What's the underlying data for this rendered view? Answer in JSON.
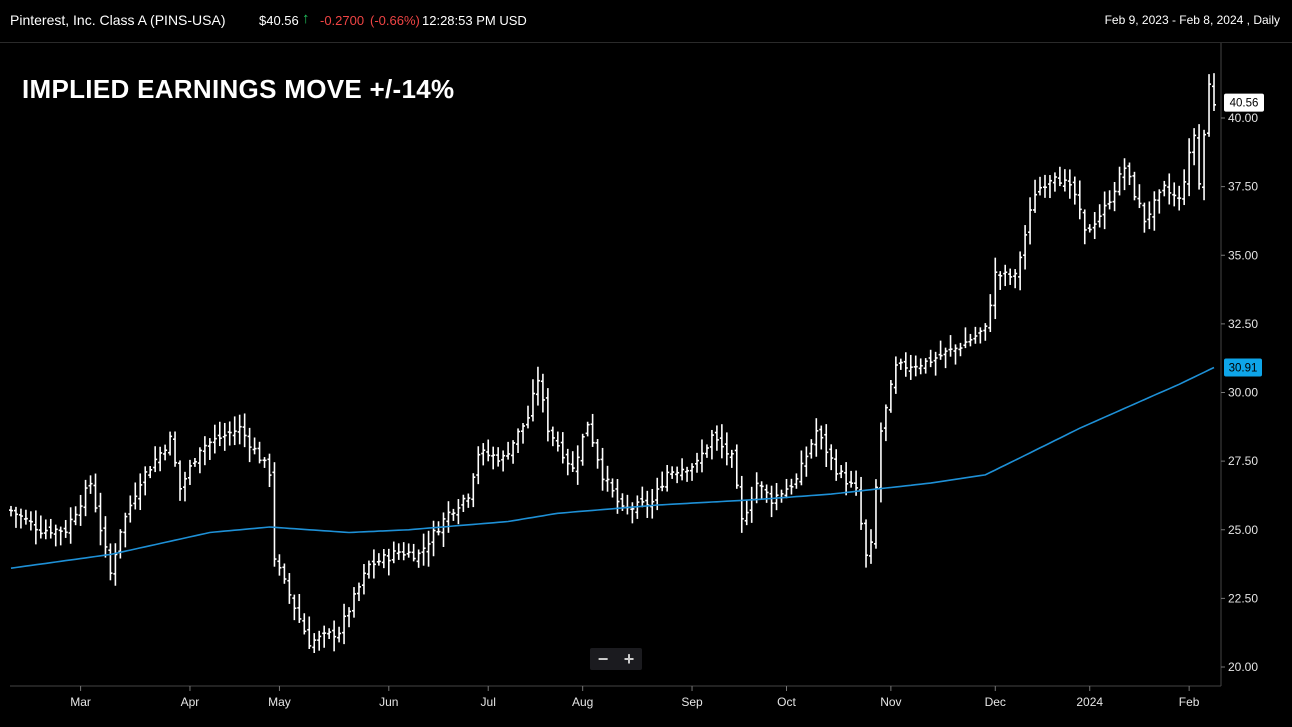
{
  "header": {
    "symbol": "Pinterest, Inc. Class A (PINS-USA)",
    "price": "$40.56",
    "arrow_icon": "arrow-up-icon",
    "change": "-0.2700",
    "change_pct": "(-0.66%)",
    "time": "12:28:53 PM USD",
    "range": "Feb 9, 2023 - Feb 8, 2024 , Daily",
    "up_color": "#22c55e",
    "down_color": "#ef4444"
  },
  "annotation": "IMPLIED EARNINGS MOVE +/-14%",
  "zoom": {
    "minus": "−",
    "plus": "+"
  },
  "colors": {
    "bars": "#ffffff",
    "ma": "#1e90d6",
    "ma_tag": "#0ea5e9",
    "background": "#000000"
  },
  "chart_data": {
    "type": "ohlc",
    "title": "",
    "ylim": [
      19.5,
      42.0
    ],
    "y_ticks": [
      20.0,
      22.5,
      25.0,
      27.5,
      30.0,
      32.5,
      35.0,
      37.5,
      40.0
    ],
    "y_tick_labels": [
      "20.00",
      "22.50",
      "25.00",
      "27.50",
      "30.00",
      "32.50",
      "35.00",
      "37.50",
      "40.00"
    ],
    "x_ticks": [
      {
        "label": "Mar",
        "index": 14
      },
      {
        "label": "Apr",
        "index": 36
      },
      {
        "label": "May",
        "index": 54
      },
      {
        "label": "Jun",
        "index": 76
      },
      {
        "label": "Jul",
        "index": 96
      },
      {
        "label": "Aug",
        "index": 115
      },
      {
        "label": "Sep",
        "index": 137
      },
      {
        "label": "Oct",
        "index": 156
      },
      {
        "label": "Nov",
        "index": 177
      },
      {
        "label": "Dec",
        "index": 198
      },
      {
        "label": "2024",
        "index": 217
      },
      {
        "label": "Feb",
        "index": 237
      }
    ],
    "n_days": 243,
    "last_price_label": "40.56",
    "ma_label": "30.91",
    "closes": [
      [
        0,
        25.7
      ],
      [
        6,
        25.0
      ],
      [
        11,
        25.0
      ],
      [
        16,
        26.7
      ],
      [
        20,
        23.4
      ],
      [
        22,
        25.0
      ],
      [
        26,
        26.8
      ],
      [
        32,
        28.3
      ],
      [
        34,
        26.5
      ],
      [
        38,
        28.0
      ],
      [
        46,
        28.7
      ],
      [
        52,
        27.1
      ],
      [
        53,
        24.0
      ],
      [
        54,
        23.5
      ],
      [
        60,
        20.9
      ],
      [
        66,
        21.3
      ],
      [
        72,
        23.7
      ],
      [
        78,
        24.2
      ],
      [
        82,
        24.1
      ],
      [
        88,
        25.6
      ],
      [
        92,
        26.3
      ],
      [
        94,
        27.8
      ],
      [
        99,
        27.6
      ],
      [
        104,
        29.1
      ],
      [
        106,
        30.5
      ],
      [
        108,
        28.7
      ],
      [
        113,
        27.2
      ],
      [
        116,
        28.9
      ],
      [
        119,
        27.0
      ],
      [
        123,
        25.7
      ],
      [
        129,
        26.0
      ],
      [
        132,
        27.1
      ],
      [
        138,
        27.4
      ],
      [
        141,
        28.4
      ],
      [
        145,
        27.6
      ],
      [
        147,
        25.3
      ],
      [
        150,
        26.7
      ],
      [
        153,
        26.1
      ],
      [
        158,
        26.8
      ],
      [
        162,
        28.6
      ],
      [
        166,
        27.2
      ],
      [
        170,
        26.4
      ],
      [
        172,
        24.0
      ],
      [
        173,
        24.4
      ],
      [
        175,
        28.6
      ],
      [
        178,
        30.9
      ],
      [
        184,
        31.1
      ],
      [
        190,
        31.6
      ],
      [
        196,
        32.3
      ],
      [
        198,
        34.3
      ],
      [
        202,
        34.2
      ],
      [
        206,
        37.3
      ],
      [
        210,
        38.0
      ],
      [
        214,
        37.2
      ],
      [
        216,
        35.8
      ],
      [
        220,
        36.7
      ],
      [
        224,
        38.2
      ],
      [
        228,
        36.3
      ],
      [
        232,
        37.4
      ],
      [
        235,
        37.0
      ],
      [
        238,
        39.4
      ],
      [
        239,
        37.6
      ],
      [
        241,
        41.2
      ],
      [
        242,
        40.56
      ]
    ],
    "ma_points": [
      [
        0,
        23.6
      ],
      [
        20,
        24.1
      ],
      [
        40,
        24.9
      ],
      [
        52,
        25.1
      ],
      [
        60,
        25.0
      ],
      [
        68,
        24.9
      ],
      [
        80,
        25.0
      ],
      [
        100,
        25.3
      ],
      [
        110,
        25.6
      ],
      [
        130,
        25.9
      ],
      [
        150,
        26.1
      ],
      [
        165,
        26.3
      ],
      [
        175,
        26.5
      ],
      [
        185,
        26.7
      ],
      [
        196,
        27.0
      ],
      [
        205,
        27.8
      ],
      [
        215,
        28.7
      ],
      [
        225,
        29.5
      ],
      [
        235,
        30.3
      ],
      [
        242,
        30.91
      ]
    ]
  }
}
